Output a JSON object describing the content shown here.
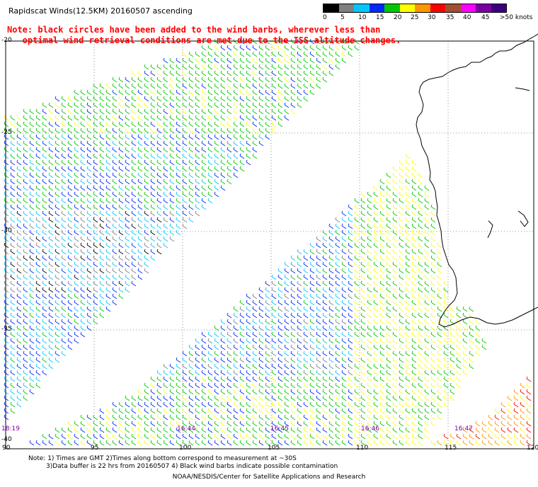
{
  "header": {
    "title": "Rapidscat Winds(12.5KM) 20160507 ascending",
    "note_line1": "Note: black circles have been added to the wind barbs, wherever less than",
    "note_line2": "   optimal wind retrieval conditions are met due to the ISS altitude changes."
  },
  "scale": {
    "labels": [
      "0",
      "5",
      "10",
      "15",
      "20",
      "25",
      "30",
      "35",
      "40",
      "45",
      ">50 knots"
    ],
    "colors": [
      "#000000",
      "#808080",
      "#00c8ff",
      "#0028ff",
      "#00c800",
      "#ffff00",
      "#ff9600",
      "#ff0000",
      "#a05030",
      "#ff00ff",
      "#7a00a0",
      "#3c007a"
    ]
  },
  "map": {
    "lat_labels": [
      "-20",
      "-25",
      "-30",
      "-35",
      "-40"
    ],
    "lon_labels": [
      "90",
      "95",
      "100",
      "105",
      "110",
      "115",
      "120"
    ],
    "time_labels": [
      "18:19",
      "16:44",
      "16:45",
      "16:46",
      "16:47"
    ]
  },
  "footer": {
    "line1": "Note: 1) Times are GMT 2)Times along bottom correspond to measurement at ~30S",
    "line2": "3)Data buffer is 22 hrs from 20160507 4) Black wind barbs indicate possible contamination",
    "line3": "NOAA/NESDIS/Center for Satellite Applications and Research"
  }
}
